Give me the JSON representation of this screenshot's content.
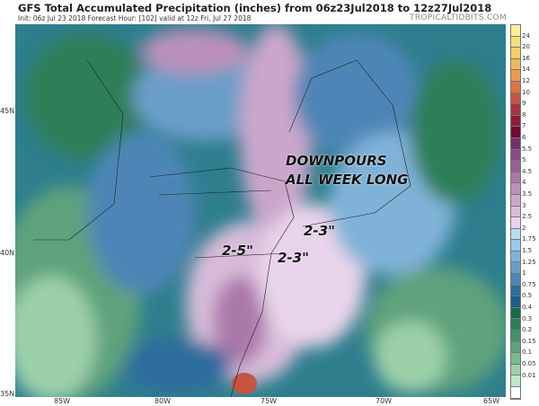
{
  "header": {
    "title": "GFS Total Accumulated Precipitation (inches) from 06z23Jul2018 to 12z27Jul2018",
    "subtitle": "Init: 06z Jul 23 2018   Forecast Hour: [102]   valid at 12z Fri, Jul 27 2018",
    "brand": "TROPICALTIDBITS.COM"
  },
  "axes": {
    "lat_labels": [
      "45N",
      "40N",
      "35N"
    ],
    "lon_labels": [
      "85W",
      "80W",
      "75W",
      "70W",
      "65W"
    ]
  },
  "colorbar": {
    "labels": [
      "24",
      "20",
      "16",
      "14",
      "12",
      "10",
      "9",
      "8",
      "7",
      "6",
      "5.5",
      "5",
      "4.5",
      "4",
      "3.5",
      "3",
      "2.5",
      "2",
      "1.75",
      "1.5",
      "1.25",
      "1",
      "0.75",
      "0.5",
      "0.4",
      "0.3",
      "0.2",
      "0.15",
      "0.1",
      "0.05",
      "0.01"
    ],
    "colors": [
      "#fbeea0",
      "#f8e07c",
      "#f5cf6a",
      "#f0b85c",
      "#e89a52",
      "#d8744a",
      "#c55444",
      "#aa3340",
      "#8c1c3a",
      "#6e0a30",
      "#74306e",
      "#864a86",
      "#9a5f98",
      "#ab78aa",
      "#bb90bb",
      "#cba6cb",
      "#d9bcd9",
      "#e8d4ea",
      "#b8dcf2",
      "#9cc8e6",
      "#80b2d8",
      "#6a9ec8",
      "#4e86b6",
      "#2e6c9e",
      "#1c5e86",
      "#186a48",
      "#2e7e58",
      "#44906a",
      "#5ea27c",
      "#7cb890",
      "#9cd0aa",
      "#bfe6c8",
      "#ffffff"
    ]
  },
  "annotations": {
    "headline_line1": "DOWNPOURS",
    "headline_line2": "ALL WEEK LONG",
    "west_total": "2-5\"",
    "nyc_total": "2-3\"",
    "nj_total": "2-3\""
  }
}
